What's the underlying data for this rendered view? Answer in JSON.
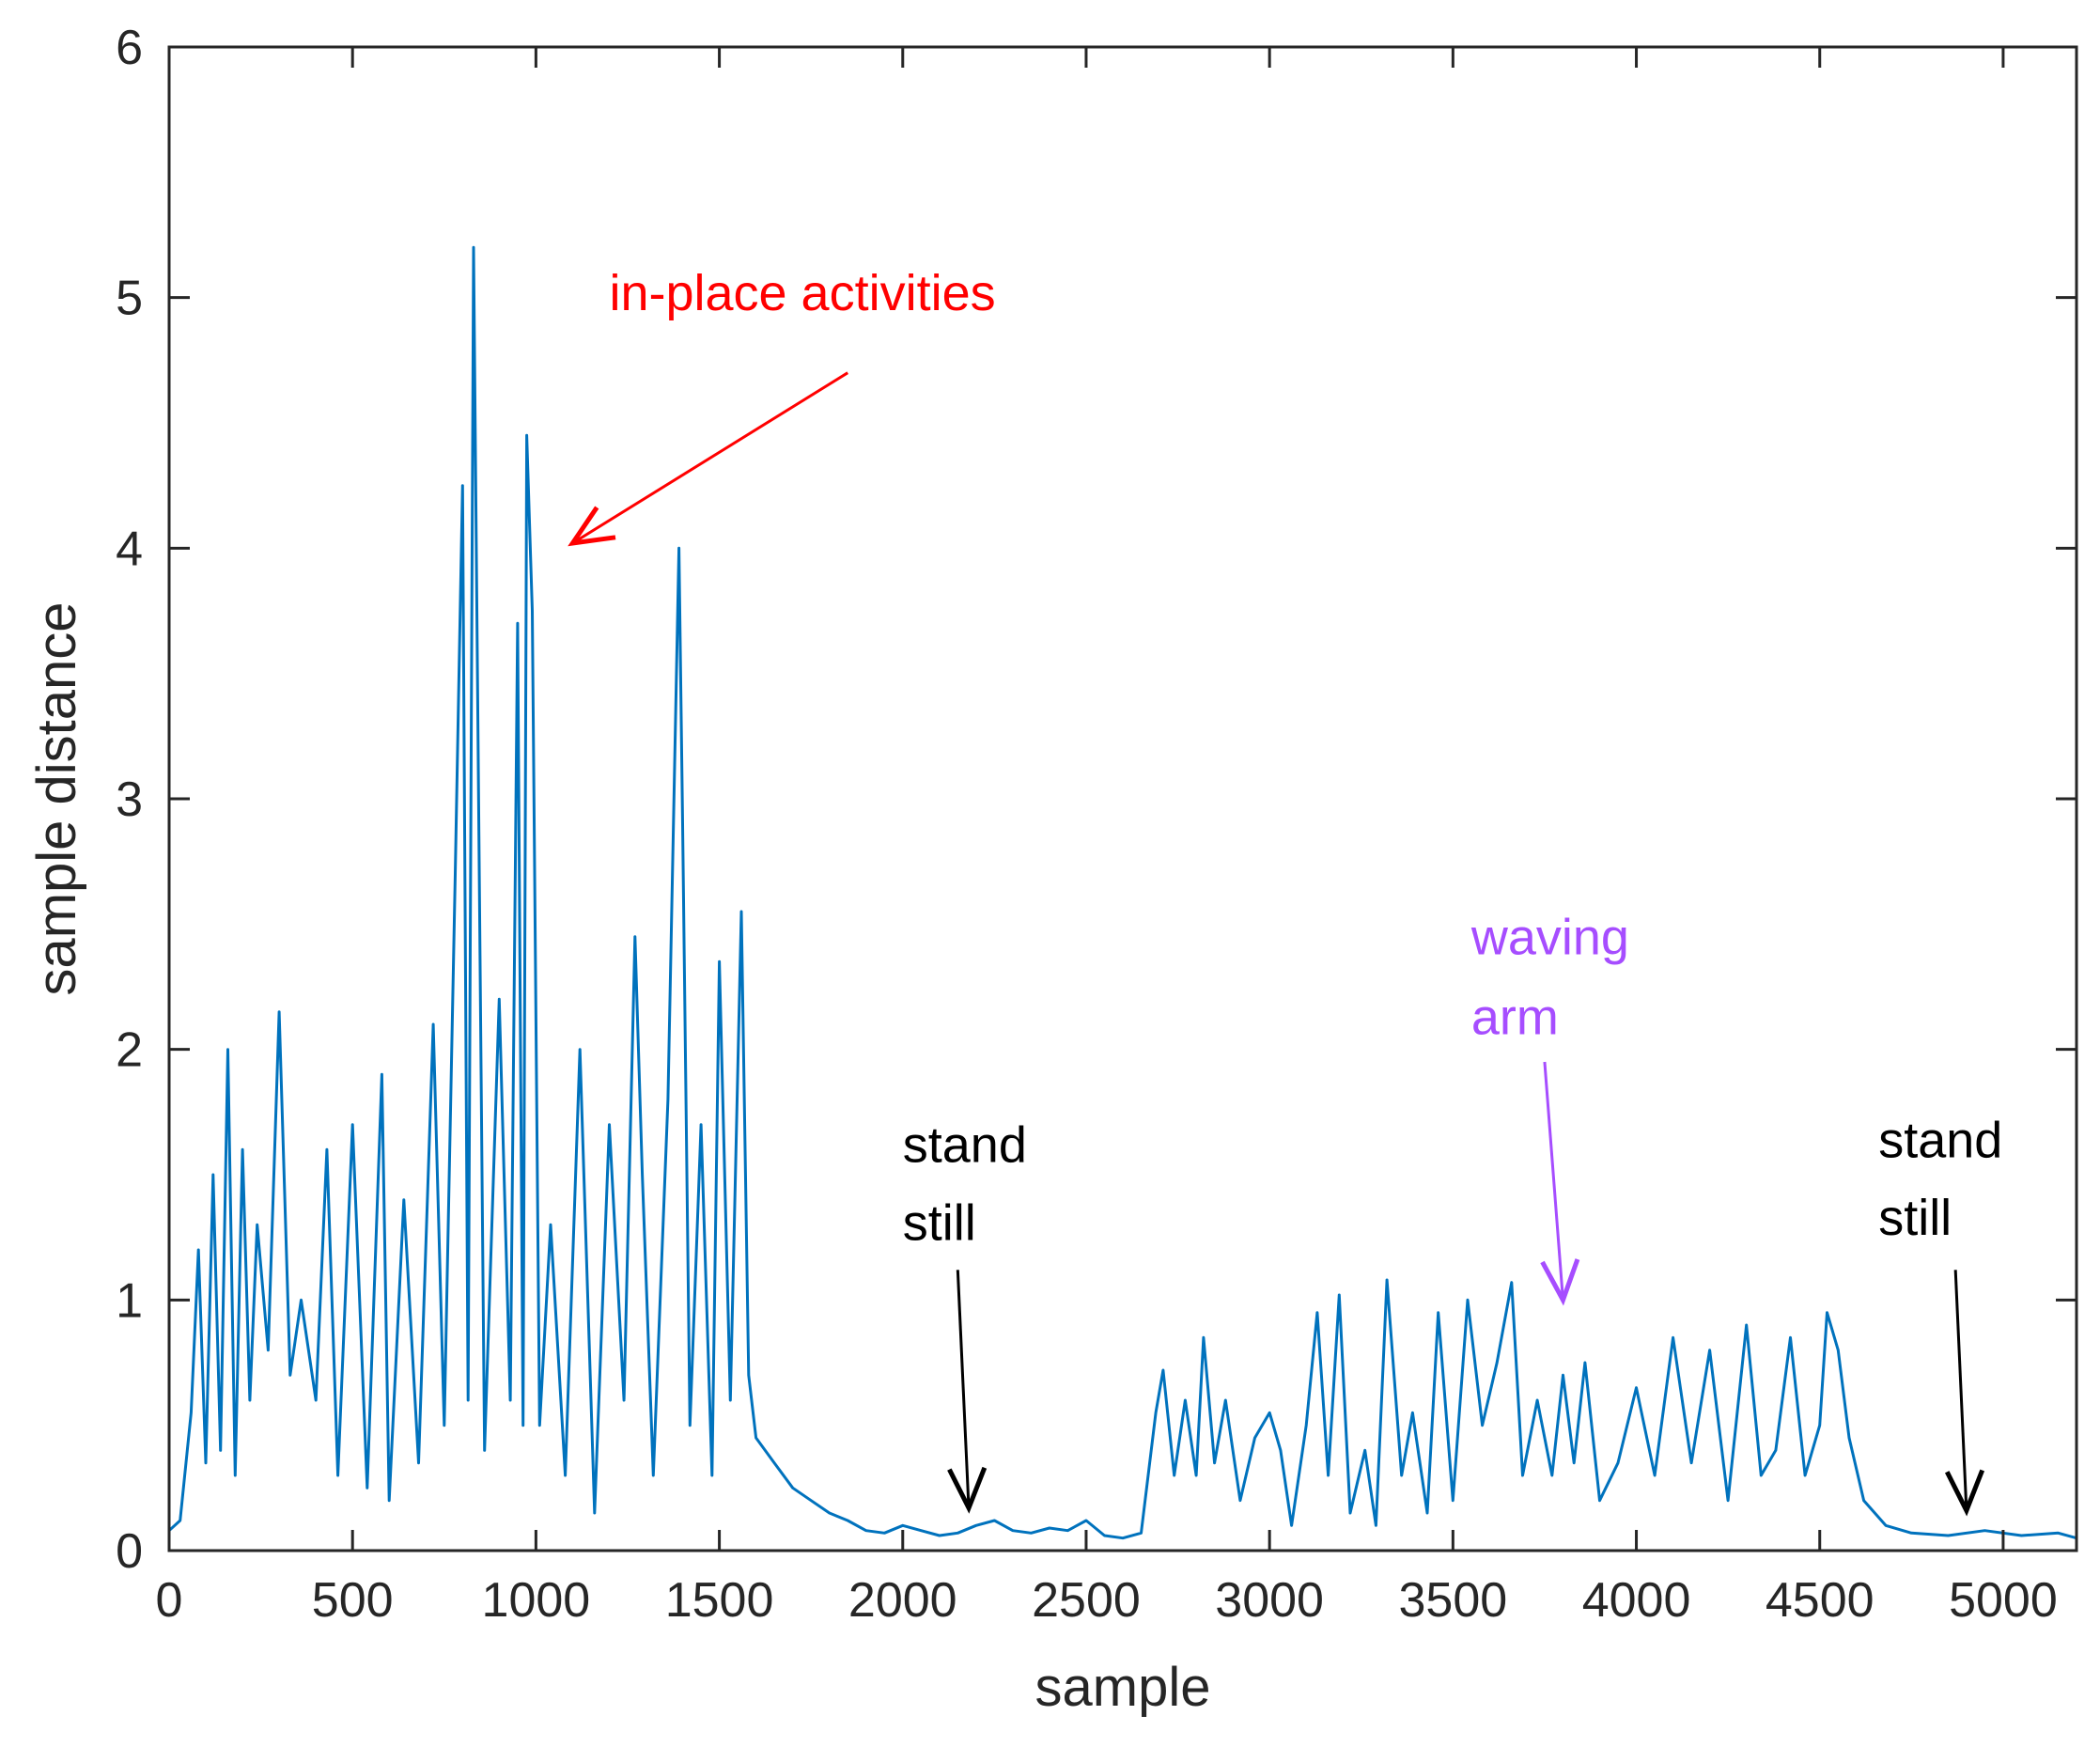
{
  "chart_data": {
    "type": "line",
    "title": "",
    "xlabel": "sample",
    "ylabel": "sample distance",
    "xlim": [
      0,
      5200
    ],
    "ylim": [
      0,
      6
    ],
    "xticks": [
      0,
      500,
      1000,
      1500,
      2000,
      2500,
      3000,
      3500,
      4000,
      4500,
      5000
    ],
    "xtick_labels": [
      "0",
      "500",
      "1000",
      "1500",
      "2000",
      "2500",
      "3000",
      "3500",
      "4000",
      "4500",
      "5000"
    ],
    "yticks": [
      0,
      1,
      2,
      3,
      4,
      5,
      6
    ],
    "ytick_labels": [
      "0",
      "1",
      "2",
      "3",
      "4",
      "5",
      "6"
    ],
    "grid": false,
    "series": [
      {
        "name": "sample distance",
        "color": "#0072bd",
        "x": [
          0,
          30,
          60,
          80,
          100,
          120,
          140,
          160,
          180,
          200,
          220,
          240,
          270,
          300,
          330,
          360,
          400,
          430,
          460,
          500,
          540,
          580,
          600,
          640,
          680,
          720,
          750,
          780,
          800,
          815,
          830,
          860,
          900,
          930,
          950,
          965,
          975,
          990,
          1010,
          1040,
          1080,
          1120,
          1160,
          1200,
          1240,
          1270,
          1290,
          1320,
          1360,
          1390,
          1400,
          1420,
          1450,
          1480,
          1500,
          1530,
          1560,
          1580,
          1600,
          1650,
          1700,
          1750,
          1800,
          1850,
          1900,
          1950,
          2000,
          2050,
          2100,
          2150,
          2200,
          2250,
          2300,
          2350,
          2400,
          2450,
          2500,
          2550,
          2600,
          2650,
          2690,
          2710,
          2740,
          2770,
          2800,
          2820,
          2850,
          2880,
          2920,
          2960,
          3000,
          3030,
          3060,
          3100,
          3130,
          3160,
          3190,
          3220,
          3260,
          3290,
          3320,
          3360,
          3390,
          3430,
          3460,
          3500,
          3540,
          3580,
          3620,
          3660,
          3690,
          3730,
          3770,
          3800,
          3830,
          3860,
          3900,
          3950,
          4000,
          4050,
          4100,
          4150,
          4200,
          4250,
          4300,
          4340,
          4380,
          4420,
          4460,
          4500,
          4520,
          4550,
          4580,
          4620,
          4680,
          4750,
          4850,
          4950,
          5050,
          5150,
          5200
        ],
        "y": [
          0.08,
          0.12,
          0.55,
          1.2,
          0.35,
          1.5,
          0.4,
          2.0,
          0.3,
          1.6,
          0.6,
          1.3,
          0.8,
          2.15,
          0.7,
          1.0,
          0.6,
          1.6,
          0.3,
          1.7,
          0.25,
          1.9,
          0.2,
          1.4,
          0.35,
          2.1,
          0.5,
          2.7,
          4.25,
          0.6,
          5.2,
          0.4,
          2.2,
          0.6,
          3.7,
          0.5,
          4.45,
          3.75,
          0.5,
          1.3,
          0.3,
          2.0,
          0.15,
          1.7,
          0.6,
          2.45,
          1.5,
          0.3,
          1.8,
          4.0,
          2.9,
          0.5,
          1.7,
          0.3,
          2.35,
          0.6,
          2.55,
          0.7,
          0.45,
          0.35,
          0.25,
          0.2,
          0.15,
          0.12,
          0.08,
          0.07,
          0.1,
          0.08,
          0.06,
          0.07,
          0.1,
          0.12,
          0.08,
          0.07,
          0.09,
          0.08,
          0.12,
          0.06,
          0.05,
          0.07,
          0.55,
          0.72,
          0.3,
          0.6,
          0.3,
          0.85,
          0.35,
          0.6,
          0.2,
          0.45,
          0.55,
          0.4,
          0.1,
          0.5,
          0.95,
          0.3,
          1.02,
          0.15,
          0.4,
          0.1,
          1.08,
          0.3,
          0.55,
          0.15,
          0.95,
          0.2,
          1.0,
          0.5,
          0.75,
          1.07,
          0.3,
          0.6,
          0.3,
          0.7,
          0.35,
          0.75,
          0.2,
          0.35,
          0.65,
          0.3,
          0.85,
          0.35,
          0.8,
          0.2,
          0.9,
          0.3,
          0.4,
          0.85,
          0.3,
          0.5,
          0.95,
          0.8,
          0.45,
          0.2,
          0.1,
          0.07,
          0.06,
          0.08,
          0.06,
          0.07,
          0.05
        ]
      }
    ],
    "annotations": [
      {
        "text": "in-place activities",
        "color": "#ff0000",
        "text_at": [
          1200,
          4.95
        ],
        "arrow_from": [
          1850,
          4.7
        ],
        "arrow_to": [
          1100,
          4.02
        ]
      },
      {
        "text": "stand",
        "color": "#000000",
        "text_at": [
          2000,
          1.55
        ],
        "arrow_from": [
          2150,
          1.12
        ],
        "arrow_to": [
          2180,
          0.17
        ]
      },
      {
        "text": "still",
        "color": "#000000",
        "text_at": [
          2000,
          1.24
        ]
      },
      {
        "text": "waving",
        "color": "#a64dff",
        "text_at": [
          3550,
          2.38
        ],
        "arrow_from": [
          3750,
          1.95
        ],
        "arrow_to": [
          3800,
          1.0
        ]
      },
      {
        "text": "arm",
        "color": "#a64dff",
        "text_at": [
          3550,
          2.06
        ]
      },
      {
        "text": "stand",
        "color": "#000000",
        "text_at": [
          4660,
          1.57
        ],
        "arrow_from": [
          4870,
          1.12
        ],
        "arrow_to": [
          4900,
          0.16
        ]
      },
      {
        "text": "still",
        "color": "#000000",
        "text_at": [
          4660,
          1.26
        ]
      }
    ]
  }
}
